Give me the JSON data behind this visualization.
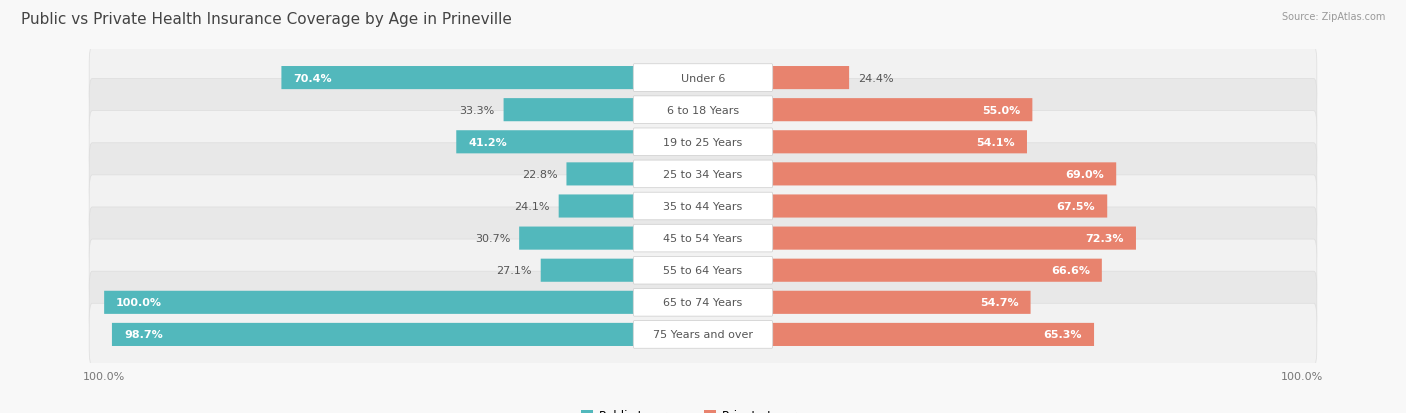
{
  "title": "Public vs Private Health Insurance Coverage by Age in Prineville",
  "source": "Source: ZipAtlas.com",
  "categories": [
    "Under 6",
    "6 to 18 Years",
    "19 to 25 Years",
    "25 to 34 Years",
    "35 to 44 Years",
    "45 to 54 Years",
    "55 to 64 Years",
    "65 to 74 Years",
    "75 Years and over"
  ],
  "public_values": [
    70.4,
    33.3,
    41.2,
    22.8,
    24.1,
    30.7,
    27.1,
    100.0,
    98.7
  ],
  "private_values": [
    24.4,
    55.0,
    54.1,
    69.0,
    67.5,
    72.3,
    66.6,
    54.7,
    65.3
  ],
  "public_color": "#52b8bc",
  "private_color": "#e8836e",
  "row_bg_odd": "#f2f2f2",
  "row_bg_even": "#e8e8e8",
  "row_border": "#cccccc",
  "title_fontsize": 11,
  "label_fontsize": 8,
  "value_fontsize": 8,
  "axis_max": 100.0,
  "figsize": [
    14.06,
    4.14
  ],
  "dpi": 100
}
